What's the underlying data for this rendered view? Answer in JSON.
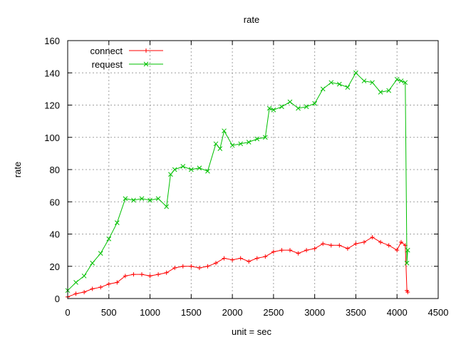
{
  "chart_data": {
    "type": "line",
    "title": "rate",
    "xlabel": "unit = sec",
    "ylabel": "rate",
    "xlim": [
      0,
      4500
    ],
    "ylim": [
      0,
      160
    ],
    "xticks": [
      0,
      500,
      1000,
      1500,
      2000,
      2500,
      3000,
      3500,
      4000,
      4500
    ],
    "yticks": [
      0,
      20,
      40,
      60,
      80,
      100,
      120,
      140,
      160
    ],
    "grid": true,
    "legend_position": "top-left",
    "series": [
      {
        "name": "connect",
        "color": "#ff0000",
        "marker": "plus",
        "x": [
          0,
          100,
          200,
          300,
          400,
          500,
          600,
          700,
          800,
          900,
          1000,
          1100,
          1200,
          1300,
          1400,
          1500,
          1600,
          1700,
          1800,
          1900,
          2000,
          2100,
          2200,
          2300,
          2400,
          2500,
          2600,
          2700,
          2800,
          2900,
          3000,
          3100,
          3200,
          3300,
          3400,
          3500,
          3600,
          3700,
          3800,
          3900,
          4000,
          4050,
          4100,
          4120,
          4130
        ],
        "y": [
          1,
          3,
          4,
          6,
          7,
          9,
          10,
          14,
          15,
          15,
          14,
          15,
          16,
          19,
          20,
          20,
          19,
          20,
          22,
          25,
          24,
          25,
          23,
          25,
          26,
          29,
          30,
          30,
          28,
          30,
          31,
          34,
          33,
          33,
          31,
          34,
          35,
          38,
          35,
          33,
          30,
          35,
          33,
          5,
          4
        ]
      },
      {
        "name": "request",
        "color": "#00c000",
        "marker": "x",
        "x": [
          0,
          100,
          200,
          300,
          400,
          500,
          600,
          700,
          800,
          900,
          1000,
          1100,
          1200,
          1250,
          1300,
          1400,
          1500,
          1600,
          1700,
          1800,
          1850,
          1900,
          2000,
          2100,
          2200,
          2300,
          2400,
          2450,
          2500,
          2600,
          2700,
          2800,
          2900,
          3000,
          3100,
          3200,
          3300,
          3400,
          3500,
          3600,
          3700,
          3800,
          3900,
          4000,
          4050,
          4100,
          4120,
          4130
        ],
        "y": [
          5,
          10,
          14,
          22,
          28,
          37,
          47,
          62,
          61,
          62,
          61,
          62,
          57,
          77,
          80,
          82,
          80,
          81,
          79,
          96,
          93,
          104,
          95,
          96,
          97,
          99,
          100,
          118,
          117,
          119,
          122,
          118,
          119,
          121,
          130,
          134,
          133,
          131,
          140,
          135,
          134,
          128,
          129,
          136,
          135,
          134,
          22,
          30
        ]
      }
    ]
  }
}
